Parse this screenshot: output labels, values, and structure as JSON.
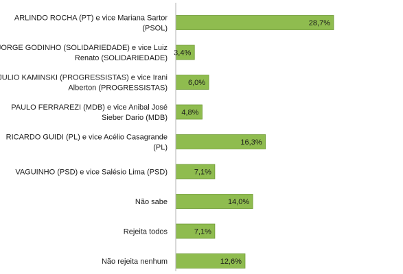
{
  "chart_data": {
    "type": "bar",
    "orientation": "horizontal",
    "categories": [
      [
        "ARLINDO ROCHA (PT) e vice Mariana Sartor",
        "(PSOL)"
      ],
      [
        "JORGE GODINHO (SOLIDARIEDADE) e vice Luiz",
        "Renato (SOLIDARIEDADE)"
      ],
      [
        "JULIO KAMINSKI (PROGRESSISTAS) e vice Irani",
        "Alberton (PROGRESSISTAS)"
      ],
      [
        "PAULO FERRAREZI (MDB) e vice Anibal José",
        "Sieber Dario (MDB)"
      ],
      [
        "RICARDO GUIDI (PL) e vice Acélio Casagrande",
        "(PL)"
      ],
      [
        "VAGUINHO (PSD) e vice Salésio Lima (PSD)"
      ],
      [
        "Não sabe"
      ],
      [
        "Rejeita todos"
      ],
      [
        "Não rejeita nenhum"
      ]
    ],
    "values": [
      28.7,
      3.4,
      6.0,
      4.8,
      16.3,
      7.1,
      14.0,
      7.1,
      12.6
    ],
    "value_labels": [
      "28,7%",
      "3,4%",
      "6,0%",
      "4,8%",
      "16,3%",
      "7,1%",
      "14,0%",
      "7,1%",
      "12,6%"
    ],
    "xlim": [
      0,
      30
    ],
    "grid": false,
    "legend": "none",
    "bar_color": "#8fbc4f",
    "bar_edge_color": "#6f9a36",
    "axis_color": "#b0b0b0"
  }
}
